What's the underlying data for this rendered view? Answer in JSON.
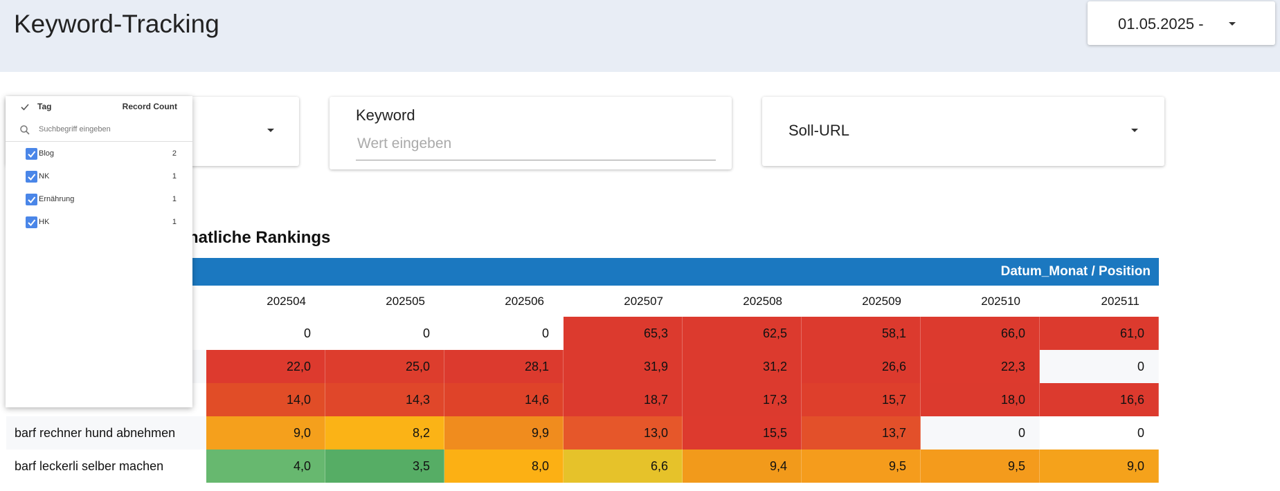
{
  "header": {
    "title": "Keyword-Tracking",
    "date_range": "01.05.2025 -"
  },
  "filters": {
    "tag_dropdown": {
      "column_header": "Tag",
      "count_header": "Record Count",
      "search_placeholder": "Suchbegriff eingeben",
      "items": [
        {
          "label": "Blog",
          "count": 2,
          "checked": true
        },
        {
          "label": "NK",
          "count": 1,
          "checked": true
        },
        {
          "label": "Ernährung",
          "count": 1,
          "checked": true
        },
        {
          "label": "HK",
          "count": 1,
          "checked": true
        }
      ]
    },
    "keyword": {
      "label": "Keyword",
      "placeholder": "Wert eingeben"
    },
    "soll_url": {
      "label": "Soll-URL"
    }
  },
  "table": {
    "title": "natliche Rankings",
    "header": "Datum_Monat / Position",
    "header_color": "#1b78c0",
    "columns": [
      "202504",
      "202505",
      "202506",
      "202507",
      "202508",
      "202509",
      "202510",
      "202511"
    ],
    "rows": [
      {
        "keyword": null,
        "cells": [
          "0",
          "0",
          "0",
          "65,3",
          "62,5",
          "58,1",
          "66,0",
          "61,0"
        ],
        "colors": [
          "#ffffff",
          "#ffffff",
          "#ffffff",
          "#dc3a2e",
          "#dc3a2e",
          "#dc3a2e",
          "#dc3a2e",
          "#dc3a2e"
        ]
      },
      {
        "keyword": null,
        "cells": [
          "22,0",
          "25,0",
          "28,1",
          "31,9",
          "31,2",
          "26,6",
          "22,3",
          "0"
        ],
        "colors": [
          "#dd3a2e",
          "#dd3d2d",
          "#dc3a2e",
          "#dc3a2e",
          "#dc3a2e",
          "#dc3a2e",
          "#dd3a2e",
          "#f7f8fa"
        ]
      },
      {
        "keyword": null,
        "cells": [
          "14,0",
          "14,3",
          "14,6",
          "18,7",
          "17,3",
          "15,7",
          "18,0",
          "16,6"
        ],
        "colors": [
          "#e14d27",
          "#e0472a",
          "#df4329",
          "#dc3a2e",
          "#dc3a2e",
          "#de3f2c",
          "#dc3a2e",
          "#dc3a2e"
        ]
      },
      {
        "keyword": "barf rechner hund abnehmen",
        "cells": [
          "9,0",
          "8,2",
          "9,9",
          "13,0",
          "15,5",
          "13,7",
          "0",
          "0"
        ],
        "colors": [
          "#f5a01c",
          "#fbb316",
          "#f08c1e",
          "#e6572a",
          "#dd3a2e",
          "#e3502a",
          "#f7f8fa",
          "#ffffff"
        ]
      },
      {
        "keyword": "barf leckerli selber machen",
        "cells": [
          "4,0",
          "3,5",
          "8,0",
          "6,6",
          "9,4",
          "9,5",
          "9,5",
          "9,0"
        ],
        "colors": [
          "#67b86f",
          "#56ad65",
          "#fcb014",
          "#e6c22a",
          "#f29a1b",
          "#f59c1c",
          "#f49b1c",
          "#f5a21b"
        ]
      }
    ]
  }
}
